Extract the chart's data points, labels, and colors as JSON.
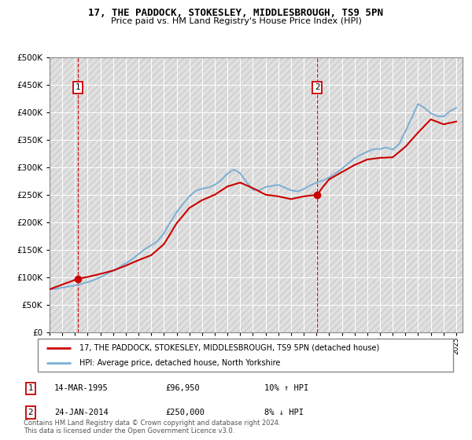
{
  "title": "17, THE PADDOCK, STOKESLEY, MIDDLESBROUGH, TS9 5PN",
  "subtitle": "Price paid vs. HM Land Registry's House Price Index (HPI)",
  "background_color": "#ffffff",
  "plot_bg_color": "#e8e8e8",
  "ylim": [
    0,
    500000
  ],
  "yticks": [
    0,
    50000,
    100000,
    150000,
    200000,
    250000,
    300000,
    350000,
    400000,
    450000,
    500000
  ],
  "ytick_labels": [
    "£0",
    "£50K",
    "£100K",
    "£150K",
    "£200K",
    "£250K",
    "£300K",
    "£350K",
    "£400K",
    "£450K",
    "£500K"
  ],
  "xlim_start": 1993.0,
  "xlim_end": 2025.5,
  "xtick_years": [
    1993,
    1994,
    1995,
    1996,
    1997,
    1998,
    1999,
    2000,
    2001,
    2002,
    2003,
    2004,
    2005,
    2006,
    2007,
    2008,
    2009,
    2010,
    2011,
    2012,
    2013,
    2014,
    2015,
    2016,
    2017,
    2018,
    2019,
    2020,
    2021,
    2022,
    2023,
    2024,
    2025
  ],
  "purchase1_x": 1995.21,
  "purchase1_y": 96950,
  "purchase2_x": 2014.07,
  "purchase2_y": 250000,
  "sale_line_color": "#cc0000",
  "hpi_line_color": "#7bafd4",
  "vline_color": "#cc0000",
  "legend_entries": [
    "17, THE PADDOCK, STOKESLEY, MIDDLESBROUGH, TS9 5PN (detached house)",
    "HPI: Average price, detached house, North Yorkshire"
  ],
  "table_rows": [
    [
      "1",
      "14-MAR-1995",
      "£96,950",
      "10% ↑ HPI"
    ],
    [
      "2",
      "24-JAN-2014",
      "£250,000",
      "8% ↓ HPI"
    ]
  ],
  "footnote": "Contains HM Land Registry data © Crown copyright and database right 2024.\nThis data is licensed under the Open Government Licence v3.0.",
  "hpi_data_x": [
    1993.0,
    1993.5,
    1994.0,
    1994.5,
    1995.0,
    1995.5,
    1996.0,
    1996.5,
    1997.0,
    1997.5,
    1998.0,
    1998.5,
    1999.0,
    1999.5,
    2000.0,
    2000.5,
    2001.0,
    2001.5,
    2002.0,
    2002.5,
    2003.0,
    2003.5,
    2004.0,
    2004.5,
    2005.0,
    2005.5,
    2006.0,
    2006.5,
    2007.0,
    2007.5,
    2008.0,
    2008.5,
    2009.0,
    2009.5,
    2010.0,
    2010.5,
    2011.0,
    2011.5,
    2012.0,
    2012.5,
    2013.0,
    2013.5,
    2014.0,
    2014.5,
    2015.0,
    2015.5,
    2016.0,
    2016.5,
    2017.0,
    2017.5,
    2018.0,
    2018.5,
    2019.0,
    2019.5,
    2020.0,
    2020.5,
    2021.0,
    2021.5,
    2022.0,
    2022.5,
    2023.0,
    2023.5,
    2024.0,
    2024.5,
    2025.0
  ],
  "hpi_data_y": [
    78000,
    79000,
    81000,
    83000,
    85000,
    88000,
    91000,
    95000,
    100000,
    106000,
    112000,
    118000,
    125000,
    133000,
    142000,
    151000,
    158000,
    166000,
    180000,
    200000,
    218000,
    233000,
    247000,
    257000,
    261000,
    263000,
    268000,
    276000,
    288000,
    296000,
    289000,
    273000,
    259000,
    258000,
    264000,
    266000,
    268000,
    263000,
    258000,
    256000,
    260000,
    267000,
    272000,
    276000,
    281000,
    289000,
    297000,
    307000,
    316000,
    323000,
    328000,
    333000,
    333000,
    336000,
    332000,
    342000,
    365000,
    390000,
    415000,
    408000,
    398000,
    393000,
    392000,
    402000,
    408000
  ],
  "sale_data_x": [
    1993.0,
    1995.21,
    1996.0,
    1997.0,
    1998.0,
    1999.0,
    2000.0,
    2001.0,
    2002.0,
    2003.0,
    2004.0,
    2005.0,
    2006.0,
    2007.0,
    2008.0,
    2009.0,
    2010.0,
    2011.0,
    2012.0,
    2013.0,
    2014.07,
    2014.5,
    2015.0,
    2016.0,
    2017.0,
    2018.0,
    2019.0,
    2020.0,
    2021.0,
    2022.0,
    2023.0,
    2024.0,
    2025.0
  ],
  "sale_data_y": [
    78000,
    96950,
    100500,
    106000,
    112000,
    121000,
    131000,
    140000,
    160000,
    198000,
    226000,
    240000,
    250000,
    265000,
    272000,
    262000,
    250000,
    247000,
    242000,
    247000,
    250000,
    264000,
    278000,
    291000,
    304000,
    314000,
    317000,
    318000,
    337000,
    363000,
    387000,
    378000,
    383000
  ]
}
